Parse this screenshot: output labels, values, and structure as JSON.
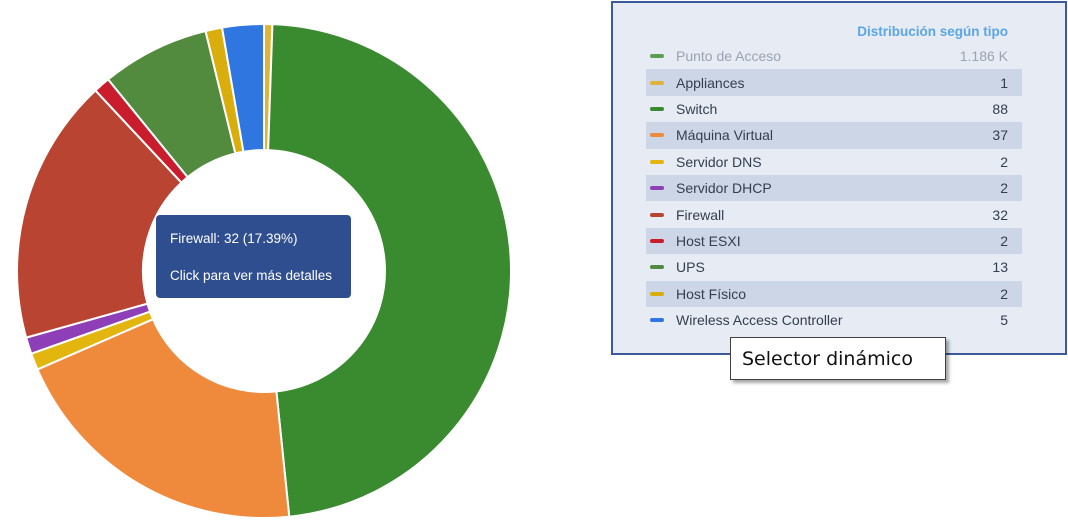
{
  "chart_data": {
    "type": "pie",
    "title": "Distribución según tipo",
    "series": [
      {
        "name": "Punto de Acceso",
        "value": 1186,
        "display_value": "1.186 K",
        "color": "#5a9e56",
        "visible_in_chart": false
      },
      {
        "name": "Appliances",
        "value": 1,
        "display_value": "1",
        "color": "#e0b33c",
        "visible_in_chart": true
      },
      {
        "name": "Switch",
        "value": 88,
        "display_value": "88",
        "color": "#3a8a30",
        "visible_in_chart": true
      },
      {
        "name": "Máquina Virtual",
        "value": 37,
        "display_value": "37",
        "color": "#ef8a3c",
        "visible_in_chart": true
      },
      {
        "name": "Servidor DNS",
        "value": 2,
        "display_value": "2",
        "color": "#e2b50f",
        "visible_in_chart": true
      },
      {
        "name": "Servidor DHCP",
        "value": 2,
        "display_value": "2",
        "color": "#8e3fb8",
        "visible_in_chart": true
      },
      {
        "name": "Firewall",
        "value": 32,
        "display_value": "32",
        "color": "#b94431",
        "visible_in_chart": true
      },
      {
        "name": "Host ESXI",
        "value": 2,
        "display_value": "2",
        "color": "#c91c2c",
        "visible_in_chart": true
      },
      {
        "name": "UPS",
        "value": 13,
        "display_value": "13",
        "color": "#528a3e",
        "visible_in_chart": true
      },
      {
        "name": "Host Físico",
        "value": 2,
        "display_value": "2",
        "color": "#d8ad0c",
        "visible_in_chart": true
      },
      {
        "name": "Wireless Access Controller",
        "value": 5,
        "display_value": "5",
        "color": "#2f76e0",
        "visible_in_chart": true
      }
    ],
    "legend_placement": "right"
  },
  "tooltip": {
    "line1": "Firewall: 32 (17.39%)",
    "line2": "Click para ver más detalles"
  },
  "callout": {
    "text": "Selector dinámico"
  }
}
